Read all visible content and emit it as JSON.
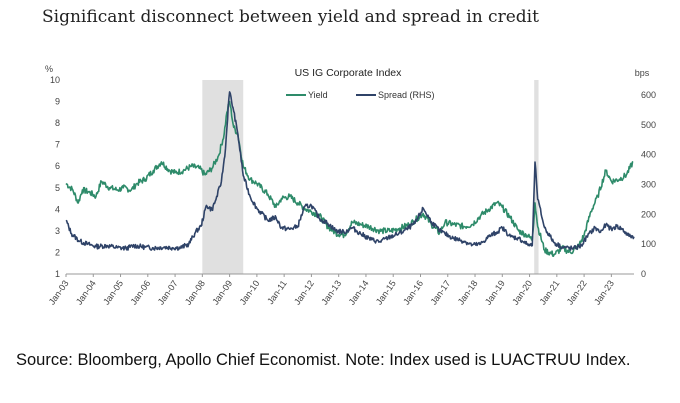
{
  "page": {
    "headline": "Significant disconnect between yield and spread in credit",
    "source_note": "Source: Bloomberg, Apollo Chief Economist. Note: Index used is LUACTRUU Index."
  },
  "chart_data": {
    "type": "line",
    "title": "US IG Corporate Index",
    "y_left_unit": "%",
    "y_right_unit": "bps",
    "ylim_left": [
      1,
      10
    ],
    "ylim_right": [
      0,
      650
    ],
    "yticks_left": [
      "1",
      "2",
      "3",
      "4",
      "5",
      "6",
      "7",
      "8",
      "9",
      "10"
    ],
    "yticks_right": [
      "0",
      "100",
      "200",
      "300",
      "400",
      "500",
      "600"
    ],
    "x_range": [
      2003.0,
      2023.83
    ],
    "x_ticks": [
      "Jan-03",
      "Jan-04",
      "Jan-05",
      "Jan-06",
      "Jan-07",
      "Jan-08",
      "Jan-09",
      "Jan-10",
      "Jan-11",
      "Jan-12",
      "Jan-13",
      "Jan-14",
      "Jan-15",
      "Jan-16",
      "Jan-17",
      "Jan-18",
      "Jan-19",
      "Jan-20",
      "Jan-21",
      "Jan-22",
      "Jan-23"
    ],
    "recessions": [
      [
        2008.0,
        2009.5
      ],
      [
        2020.17,
        2020.33
      ]
    ],
    "legend": "top-center",
    "colors": {
      "yield": "#2e8b6a",
      "spread": "#2f4368",
      "recession": "#e0e0e0",
      "axis": "#999999"
    },
    "series": [
      {
        "name": "Yield",
        "axis": "left",
        "points": [
          [
            2003.0,
            5.2
          ],
          [
            2003.25,
            4.9
          ],
          [
            2003.45,
            4.3
          ],
          [
            2003.6,
            4.9
          ],
          [
            2003.85,
            4.8
          ],
          [
            2004.1,
            4.6
          ],
          [
            2004.3,
            5.3
          ],
          [
            2004.6,
            5.0
          ],
          [
            2004.9,
            4.9
          ],
          [
            2005.1,
            5.0
          ],
          [
            2005.4,
            4.9
          ],
          [
            2005.6,
            5.2
          ],
          [
            2005.9,
            5.4
          ],
          [
            2006.2,
            5.8
          ],
          [
            2006.5,
            6.2
          ],
          [
            2006.8,
            5.8
          ],
          [
            2007.0,
            5.7
          ],
          [
            2007.3,
            5.8
          ],
          [
            2007.6,
            6.0
          ],
          [
            2007.9,
            5.9
          ],
          [
            2008.1,
            5.6
          ],
          [
            2008.35,
            5.9
          ],
          [
            2008.6,
            6.5
          ],
          [
            2008.8,
            7.5
          ],
          [
            2008.9,
            8.5
          ],
          [
            2009.0,
            9.0
          ],
          [
            2009.15,
            7.8
          ],
          [
            2009.3,
            7.5
          ],
          [
            2009.5,
            6.0
          ],
          [
            2009.75,
            5.4
          ],
          [
            2010.0,
            5.2
          ],
          [
            2010.4,
            4.7
          ],
          [
            2010.7,
            4.1
          ],
          [
            2010.9,
            4.5
          ],
          [
            2011.2,
            4.6
          ],
          [
            2011.5,
            4.3
          ],
          [
            2011.8,
            4.0
          ],
          [
            2012.0,
            3.9
          ],
          [
            2012.3,
            3.7
          ],
          [
            2012.6,
            3.2
          ],
          [
            2012.9,
            2.9
          ],
          [
            2013.2,
            2.8
          ],
          [
            2013.5,
            3.4
          ],
          [
            2013.8,
            3.3
          ],
          [
            2014.1,
            3.2
          ],
          [
            2014.5,
            3.0
          ],
          [
            2014.9,
            3.0
          ],
          [
            2015.2,
            3.1
          ],
          [
            2015.6,
            3.3
          ],
          [
            2015.9,
            3.6
          ],
          [
            2016.1,
            3.8
          ],
          [
            2016.4,
            3.3
          ],
          [
            2016.7,
            2.9
          ],
          [
            2016.9,
            3.4
          ],
          [
            2017.2,
            3.3
          ],
          [
            2017.6,
            3.2
          ],
          [
            2017.9,
            3.3
          ],
          [
            2018.2,
            3.7
          ],
          [
            2018.5,
            4.0
          ],
          [
            2018.8,
            4.3
          ],
          [
            2019.0,
            4.1
          ],
          [
            2019.3,
            3.6
          ],
          [
            2019.6,
            3.0
          ],
          [
            2019.9,
            2.8
          ],
          [
            2020.1,
            2.6
          ],
          [
            2020.2,
            4.3
          ],
          [
            2020.3,
            3.2
          ],
          [
            2020.55,
            2.1
          ],
          [
            2020.9,
            1.9
          ],
          [
            2021.2,
            2.2
          ],
          [
            2021.5,
            2.0
          ],
          [
            2021.8,
            2.3
          ],
          [
            2022.0,
            2.8
          ],
          [
            2022.25,
            3.9
          ],
          [
            2022.5,
            4.6
          ],
          [
            2022.8,
            5.8
          ],
          [
            2023.0,
            5.3
          ],
          [
            2023.3,
            5.4
          ],
          [
            2023.55,
            5.6
          ],
          [
            2023.8,
            6.2
          ]
        ]
      },
      {
        "name": "Spread (RHS)",
        "axis": "right",
        "points": [
          [
            2003.0,
            180
          ],
          [
            2003.2,
            135
          ],
          [
            2003.5,
            110
          ],
          [
            2003.8,
            100
          ],
          [
            2004.1,
            92
          ],
          [
            2004.5,
            95
          ],
          [
            2004.9,
            88
          ],
          [
            2005.2,
            86
          ],
          [
            2005.5,
            95
          ],
          [
            2005.9,
            90
          ],
          [
            2006.2,
            87
          ],
          [
            2006.6,
            90
          ],
          [
            2006.9,
            88
          ],
          [
            2007.2,
            88
          ],
          [
            2007.5,
            100
          ],
          [
            2007.75,
            140
          ],
          [
            2007.95,
            160
          ],
          [
            2008.15,
            230
          ],
          [
            2008.35,
            215
          ],
          [
            2008.5,
            250
          ],
          [
            2008.7,
            310
          ],
          [
            2008.85,
            420
          ],
          [
            2008.95,
            560
          ],
          [
            2009.0,
            610
          ],
          [
            2009.15,
            545
          ],
          [
            2009.3,
            470
          ],
          [
            2009.5,
            330
          ],
          [
            2009.75,
            260
          ],
          [
            2010.0,
            220
          ],
          [
            2010.4,
            180
          ],
          [
            2010.7,
            190
          ],
          [
            2010.9,
            155
          ],
          [
            2011.2,
            150
          ],
          [
            2011.5,
            160
          ],
          [
            2011.75,
            225
          ],
          [
            2012.0,
            230
          ],
          [
            2012.3,
            185
          ],
          [
            2012.6,
            170
          ],
          [
            2012.9,
            145
          ],
          [
            2013.2,
            140
          ],
          [
            2013.5,
            155
          ],
          [
            2013.8,
            135
          ],
          [
            2014.2,
            115
          ],
          [
            2014.5,
            108
          ],
          [
            2014.9,
            125
          ],
          [
            2015.2,
            135
          ],
          [
            2015.5,
            150
          ],
          [
            2015.8,
            170
          ],
          [
            2016.1,
            220
          ],
          [
            2016.4,
            175
          ],
          [
            2016.7,
            145
          ],
          [
            2016.9,
            135
          ],
          [
            2017.2,
            120
          ],
          [
            2017.6,
            110
          ],
          [
            2017.9,
            97
          ],
          [
            2018.2,
            100
          ],
          [
            2018.5,
            125
          ],
          [
            2018.8,
            140
          ],
          [
            2019.0,
            155
          ],
          [
            2019.3,
            125
          ],
          [
            2019.6,
            120
          ],
          [
            2019.9,
            100
          ],
          [
            2020.1,
            95
          ],
          [
            2020.2,
            375
          ],
          [
            2020.3,
            250
          ],
          [
            2020.55,
            155
          ],
          [
            2020.9,
            105
          ],
          [
            2021.2,
            90
          ],
          [
            2021.6,
            85
          ],
          [
            2021.9,
            95
          ],
          [
            2022.1,
            125
          ],
          [
            2022.4,
            155
          ],
          [
            2022.6,
            140
          ],
          [
            2022.8,
            165
          ],
          [
            2023.0,
            150
          ],
          [
            2023.2,
            160
          ],
          [
            2023.4,
            150
          ],
          [
            2023.6,
            130
          ],
          [
            2023.83,
            125
          ]
        ]
      }
    ]
  }
}
